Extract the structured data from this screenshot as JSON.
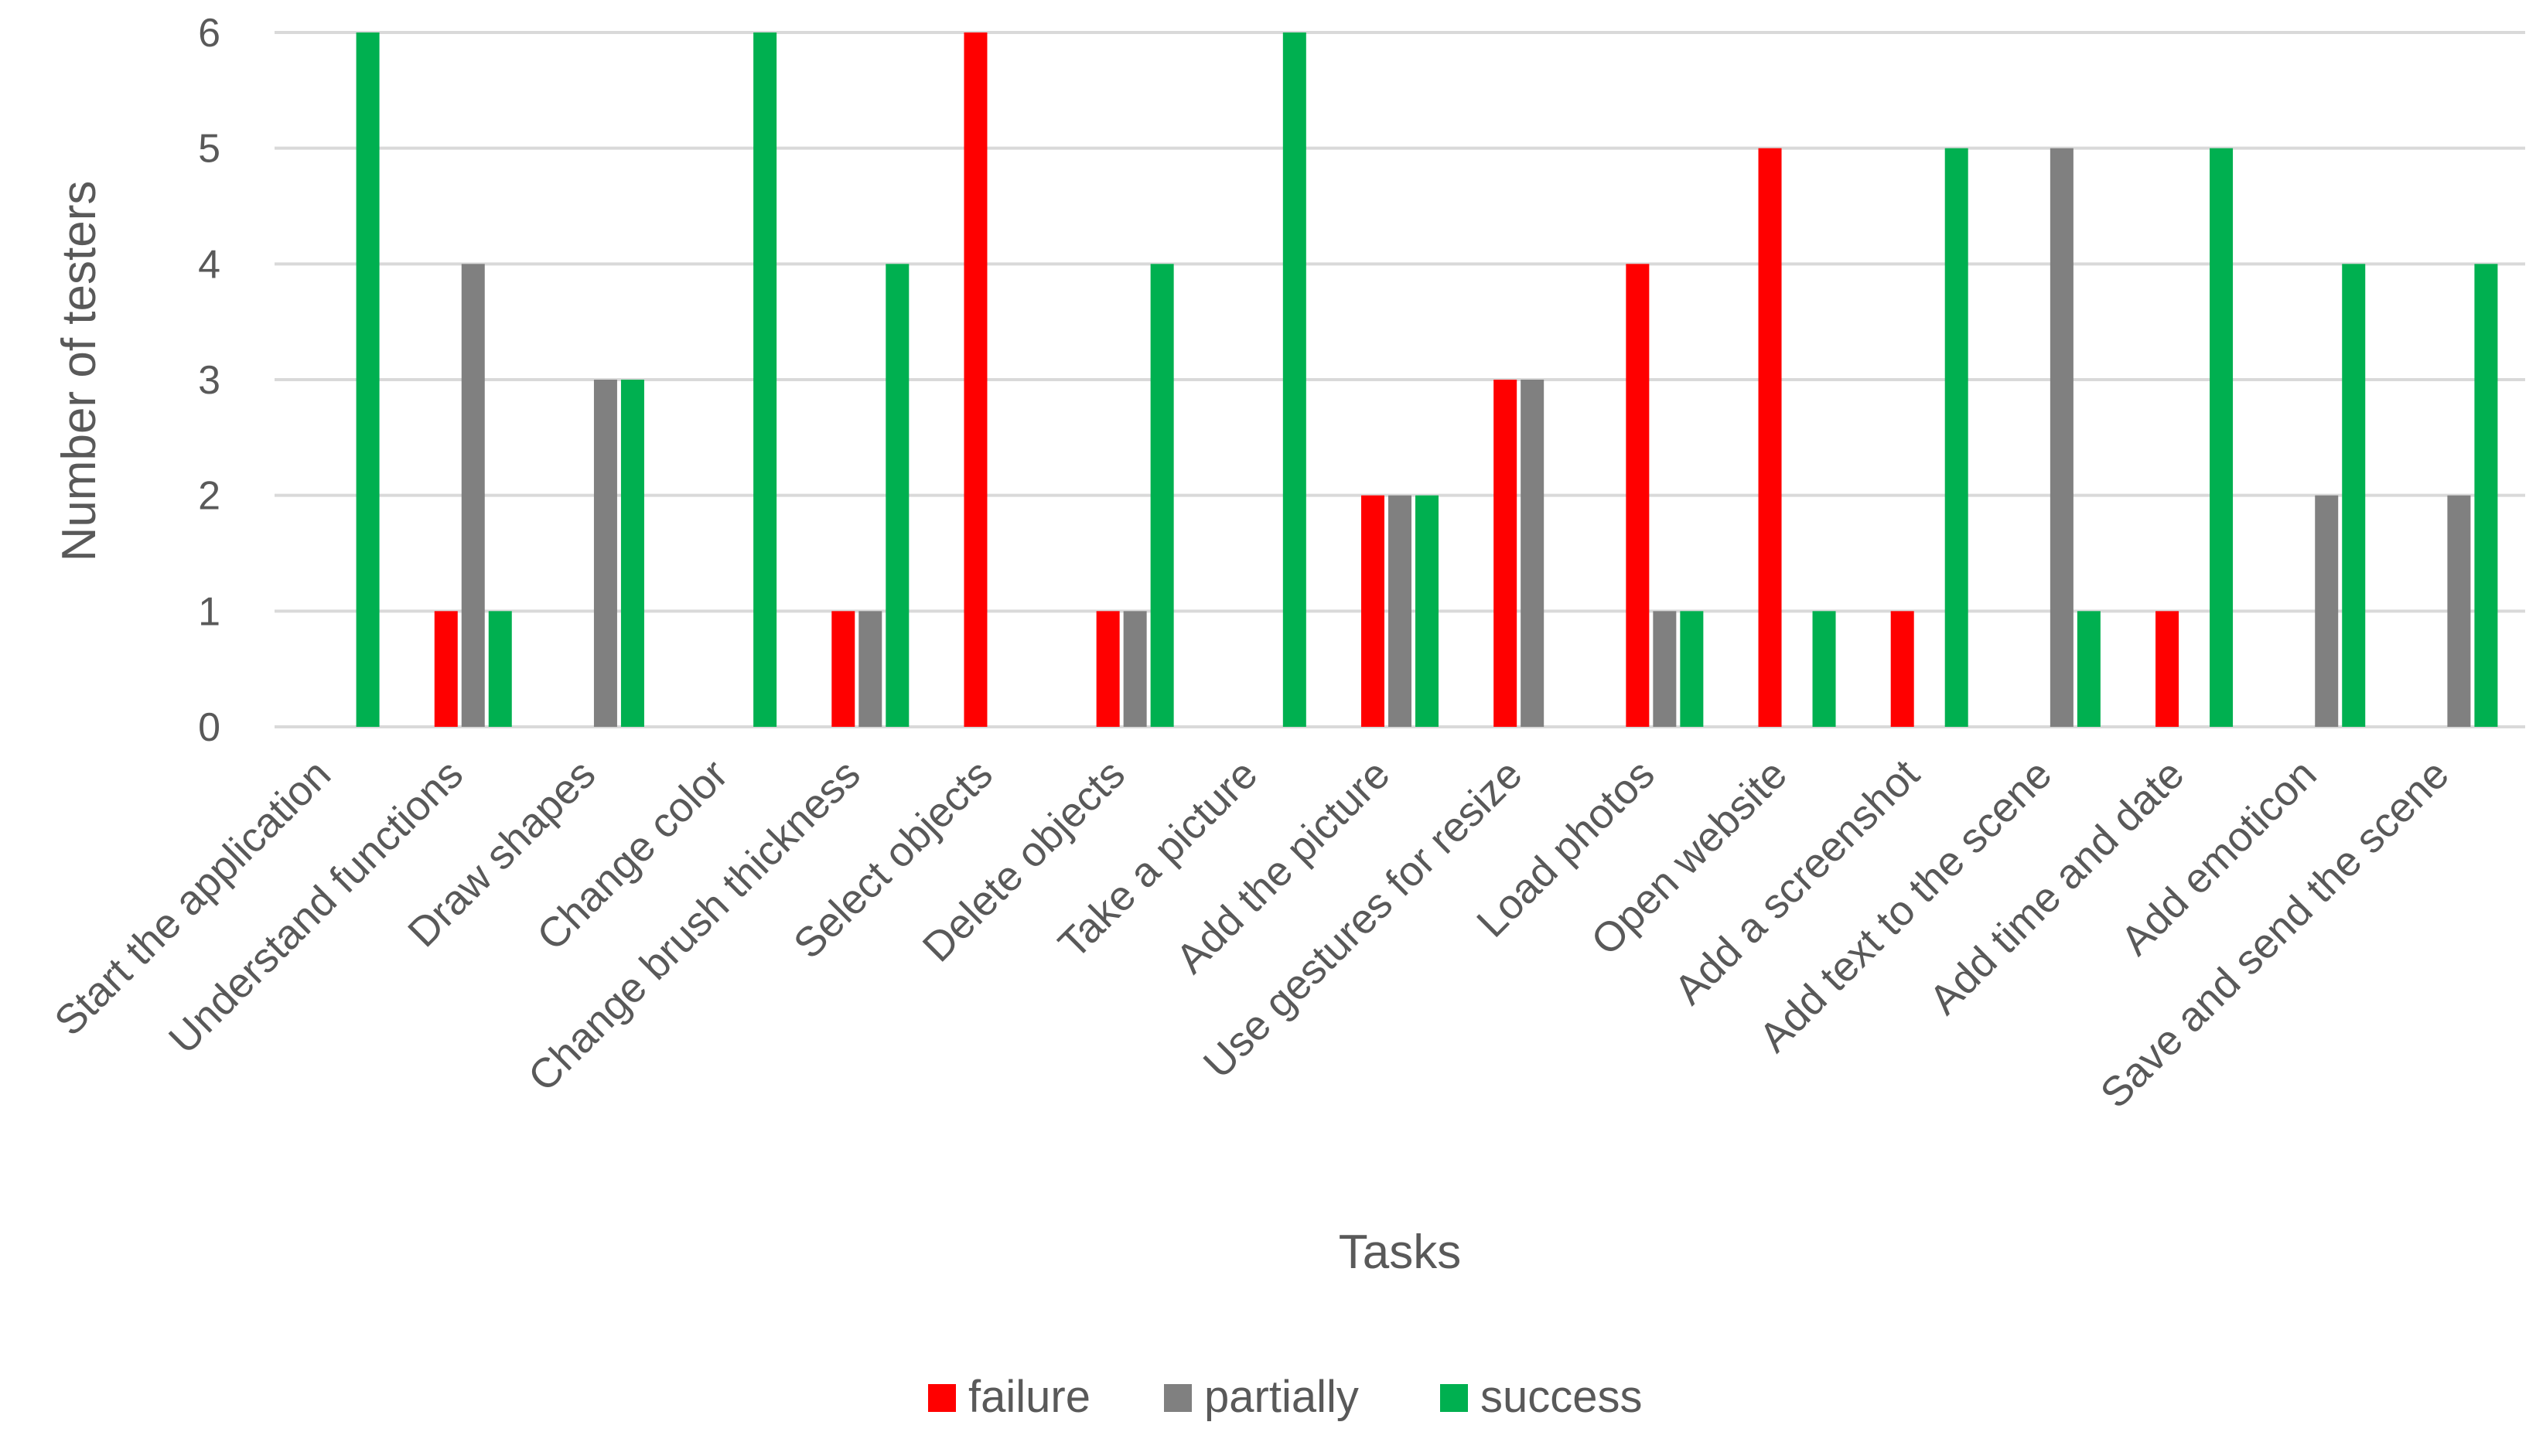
{
  "chart_data": {
    "type": "bar",
    "title": "",
    "xlabel": "Tasks",
    "ylabel": "Number of testers",
    "ylim": [
      0,
      6
    ],
    "yticks": [
      0,
      1,
      2,
      3,
      4,
      5,
      6
    ],
    "grid": true,
    "legend_position": "bottom",
    "categories": [
      "Start the application",
      "Understand functions",
      "Draw shapes",
      "Change color",
      "Change brush thickness",
      "Select objects",
      "Delete objects",
      "Take a picture",
      "Add the picture",
      "Use gestures for resize",
      "Load photos",
      "Open website",
      "Add a screenshot",
      "Add text to the scene",
      "Add time and date",
      "Add emoticon",
      "Save and send the scene"
    ],
    "series": [
      {
        "name": "failure",
        "color": "#ff0000",
        "values": [
          0,
          1,
          0,
          0,
          1,
          6,
          1,
          0,
          2,
          3,
          4,
          5,
          1,
          0,
          1,
          0,
          0
        ]
      },
      {
        "name": "partially",
        "color": "#808080",
        "values": [
          0,
          4,
          3,
          0,
          1,
          0,
          1,
          0,
          2,
          3,
          1,
          0,
          0,
          5,
          0,
          2,
          2
        ]
      },
      {
        "name": "success",
        "color": "#00b050",
        "values": [
          6,
          1,
          3,
          6,
          4,
          0,
          4,
          6,
          2,
          0,
          1,
          1,
          5,
          1,
          5,
          4,
          4
        ]
      }
    ]
  }
}
